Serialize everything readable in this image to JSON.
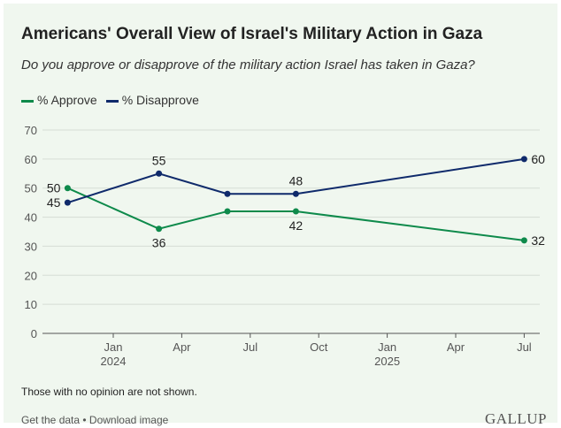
{
  "chart_data": {
    "type": "line",
    "title": "Americans' Overall View of Israel's Military Action in Gaza",
    "subtitle": "Do you approve or disapprove of the military action Israel has taken in Gaza?",
    "x": [
      "2023-11",
      "2024-03",
      "2024-06",
      "2024-09",
      "2025-07"
    ],
    "x_months_from_jan_2024": [
      -2,
      2,
      5,
      8,
      18
    ],
    "series": [
      {
        "name": "% Approve",
        "color": "#0e8a4b",
        "values": [
          50,
          36,
          42,
          42,
          32
        ],
        "labels": [
          "left",
          "below",
          null,
          "below",
          "right"
        ]
      },
      {
        "name": "% Disapprove",
        "color": "#0f2a6b",
        "values": [
          45,
          55,
          48,
          48,
          60
        ],
        "labels": [
          "left",
          "above",
          null,
          "above",
          "right"
        ]
      }
    ],
    "ylim": [
      0,
      70
    ],
    "yticks": [
      0,
      10,
      20,
      30,
      40,
      50,
      60,
      70
    ],
    "xticks": [
      {
        "month": 0,
        "label": "Jan",
        "year": "2024"
      },
      {
        "month": 3,
        "label": "Apr",
        "year": ""
      },
      {
        "month": 6,
        "label": "Jul",
        "year": ""
      },
      {
        "month": 9,
        "label": "Oct",
        "year": ""
      },
      {
        "month": 12,
        "label": "Jan",
        "year": "2025"
      },
      {
        "month": 15,
        "label": "Apr",
        "year": ""
      },
      {
        "month": 18,
        "label": "Jul",
        "year": ""
      }
    ],
    "grid": true,
    "legend": "top-left",
    "xlabel": "",
    "ylabel": ""
  },
  "note": "Those with no opinion are not shown.",
  "footer": {
    "get_data": "Get the data",
    "separator": " • ",
    "download": "Download image"
  },
  "logo": "GALLUP"
}
